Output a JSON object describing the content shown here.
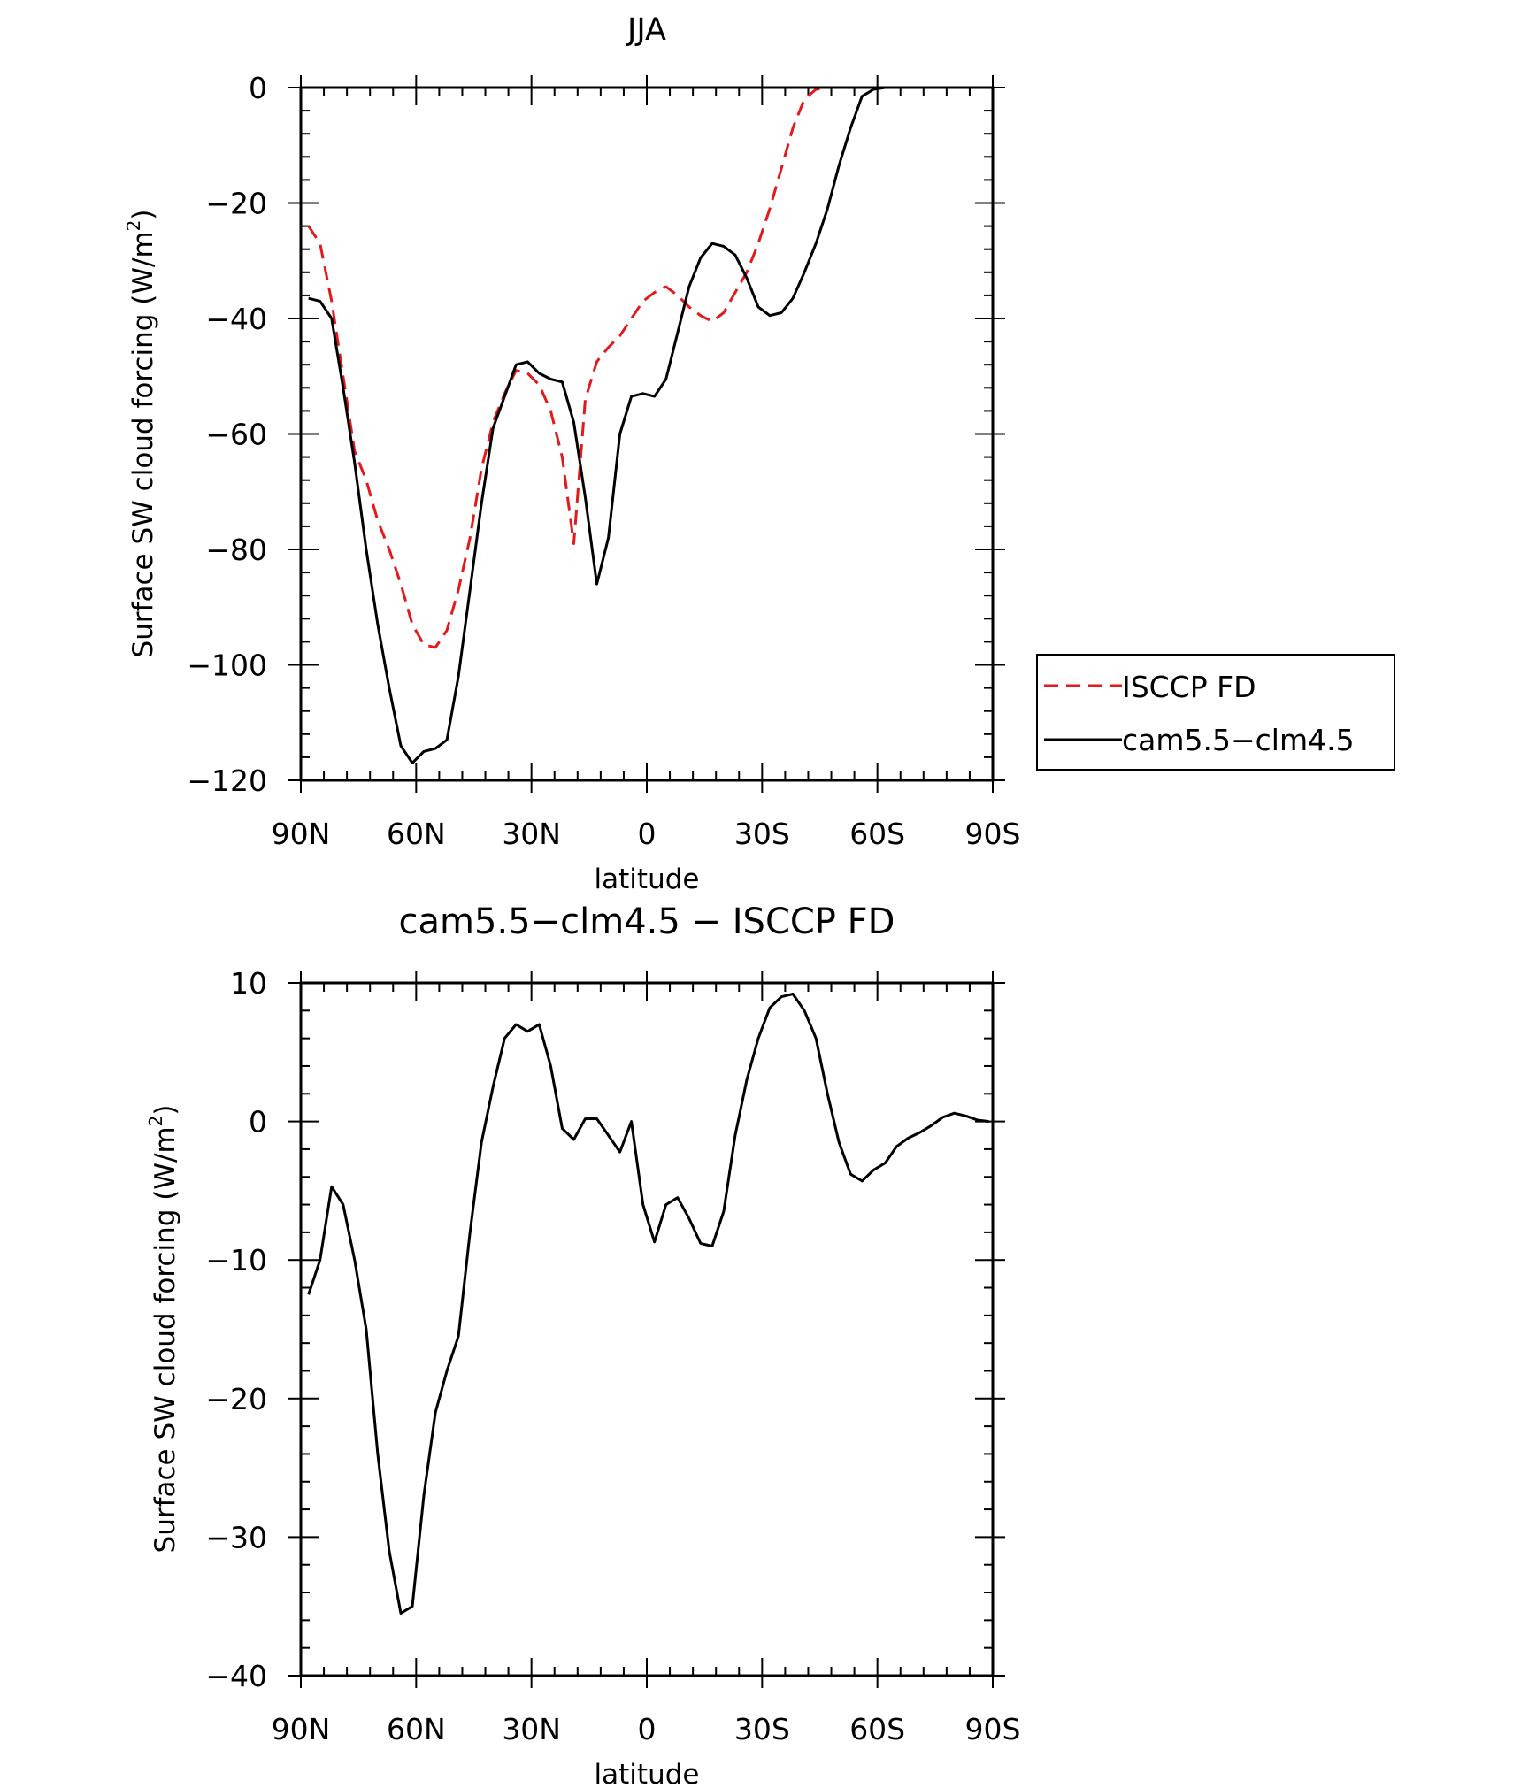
{
  "chart_data": [
    {
      "type": "line",
      "title": "JJA",
      "xlabel": "latitude",
      "ylabel": "Surface SW cloud forcing (W/m²)",
      "ylabel_main": "Surface SW cloud forcing (W/m",
      "ylabel_sup": "2",
      "ylabel_close": ")",
      "xlim": [
        90,
        -90
      ],
      "ylim": [
        -120,
        0
      ],
      "xticks": [
        90,
        60,
        30,
        0,
        -30,
        -60,
        -90
      ],
      "xtick_labels": [
        "90N",
        "60N",
        "30N",
        "0",
        "30S",
        "60S",
        "90S"
      ],
      "yticks": [
        0,
        -20,
        -40,
        -60,
        -80,
        -100,
        -120
      ],
      "ytick_labels": [
        "0",
        "−20",
        "−40",
        "−60",
        "−80",
        "−100",
        "−120"
      ],
      "legend": {
        "placement": "right",
        "entries": [
          "ISCCP FD",
          "cam5.5−clm4.5"
        ]
      },
      "series": [
        {
          "name": "ISCCP FD",
          "color": "#e31a1c",
          "dash": "dashed",
          "x": [
            88,
            85,
            82,
            79,
            76,
            73,
            70,
            67,
            64,
            61,
            58,
            55,
            52,
            49,
            46,
            43,
            40,
            37,
            34,
            31,
            28,
            25,
            22,
            19,
            16,
            13,
            10,
            7,
            4,
            1,
            -2,
            -5,
            -8,
            -11,
            -14,
            -17,
            -20,
            -23,
            -26,
            -29,
            -32,
            -35,
            -38,
            -41,
            -44,
            -47,
            -50,
            -53,
            -56,
            -59,
            -62,
            -65,
            -68,
            -71,
            -74,
            -77,
            -80,
            -83,
            -86,
            -89
          ],
          "y": [
            -24,
            -27,
            -37,
            -50,
            -63,
            -68,
            -75,
            -80,
            -86,
            -93,
            -96.5,
            -97,
            -94,
            -87,
            -78,
            -66,
            -58,
            -53,
            -49,
            -49.5,
            -51.5,
            -56,
            -64,
            -79,
            -54,
            -47.5,
            -45,
            -43,
            -40,
            -37,
            -35.5,
            -34.5,
            -36,
            -38,
            -39.5,
            -40.5,
            -39,
            -35.5,
            -32,
            -27,
            -21,
            -14,
            -7,
            -2,
            -0.3,
            0,
            0,
            0,
            0,
            0,
            0,
            0,
            0,
            0,
            0,
            0,
            0,
            0,
            0,
            0
          ]
        },
        {
          "name": "cam5.5−clm4.5",
          "color": "#000000",
          "dash": "solid",
          "x": [
            88,
            85,
            82,
            79,
            76,
            73,
            70,
            67,
            64,
            61,
            58,
            55,
            52,
            49,
            46,
            43,
            40,
            37,
            34,
            31,
            28,
            25,
            22,
            19,
            16,
            13,
            10,
            7,
            4,
            1,
            -2,
            -5,
            -8,
            -11,
            -14,
            -17,
            -20,
            -23,
            -26,
            -29,
            -32,
            -35,
            -38,
            -41,
            -44,
            -47,
            -50,
            -53,
            -56,
            -59,
            -62,
            -65,
            -68,
            -71,
            -74,
            -77,
            -80,
            -83,
            -86,
            -89
          ],
          "y": [
            -36.5,
            -37,
            -40,
            -52,
            -65,
            -80,
            -93,
            -104,
            -114,
            -117,
            -115,
            -114.5,
            -113,
            -102,
            -87,
            -72,
            -59,
            -53.5,
            -48,
            -47.5,
            -49.5,
            -50.5,
            -51,
            -58,
            -71,
            -86,
            -78,
            -60,
            -53.5,
            -53,
            -53.5,
            -50.5,
            -42.5,
            -34.5,
            -29.5,
            -27,
            -27.5,
            -29,
            -33,
            -38,
            -39.5,
            -39,
            -36.5,
            -32,
            -27,
            -21,
            -13.5,
            -7,
            -1.5,
            -0.3,
            0,
            0,
            0,
            0,
            0,
            0,
            0,
            0,
            0,
            0
          ]
        }
      ]
    },
    {
      "type": "line",
      "title": "cam5.5−clm4.5 − ISCCP FD",
      "xlabel": "latitude",
      "ylabel": "Surface SW cloud forcing (W/m²)",
      "ylabel_main": "Surface SW cloud forcing (W/m",
      "ylabel_sup": "2",
      "ylabel_close": ")",
      "xlim": [
        90,
        -90
      ],
      "ylim": [
        -40,
        10
      ],
      "xticks": [
        90,
        60,
        30,
        0,
        -30,
        -60,
        -90
      ],
      "xtick_labels": [
        "90N",
        "60N",
        "30N",
        "0",
        "30S",
        "60S",
        "90S"
      ],
      "yticks": [
        10,
        0,
        -10,
        -20,
        -30,
        -40
      ],
      "ytick_labels": [
        "10",
        "0",
        "−10",
        "−20",
        "−30",
        "−40"
      ],
      "series": [
        {
          "color": "#000000",
          "dash": "solid",
          "x": [
            88,
            85,
            82,
            79,
            76,
            73,
            70,
            67,
            64,
            61,
            58,
            55,
            52,
            49,
            46,
            43,
            40,
            37,
            34,
            31,
            28,
            25,
            22,
            19,
            16,
            13,
            10,
            7,
            4,
            1,
            -2,
            -5,
            -8,
            -11,
            -14,
            -17,
            -20,
            -23,
            -26,
            -29,
            -32,
            -35,
            -38,
            -41,
            -44,
            -47,
            -50,
            -53,
            -56,
            -59,
            -62,
            -65,
            -68,
            -71,
            -74,
            -77,
            -80,
            -83,
            -86,
            -89
          ],
          "y": [
            -12.5,
            -10,
            -4.7,
            -6,
            -10,
            -15,
            -24,
            -31,
            -35.5,
            -35,
            -27,
            -21,
            -18,
            -15.5,
            -8,
            -1.5,
            2.5,
            6,
            7,
            6.5,
            7,
            4,
            -0.5,
            -1.3,
            0.2,
            0.2,
            -1,
            -2.2,
            0,
            -6,
            -8.7,
            -6,
            -5.5,
            -7,
            -8.8,
            -9,
            -6.5,
            -1,
            3,
            6,
            8.2,
            9,
            9.2,
            8,
            6,
            2,
            -1.5,
            -3.8,
            -4.3,
            -3.5,
            -3,
            -1.8,
            -1.2,
            -0.8,
            -0.3,
            0.3,
            0.6,
            0.4,
            0.1,
            0
          ]
        }
      ]
    }
  ]
}
